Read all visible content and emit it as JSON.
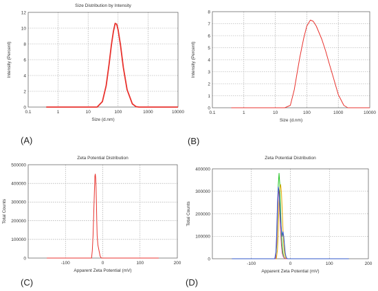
{
  "chart_data": [
    {
      "panel_label": "(A)",
      "type": "line",
      "title": "Size Distribution by Intensity",
      "xlabel": "Size (d.nm)",
      "ylabel": "Intensity (Percent)",
      "x_scale": "log",
      "xlim": [
        0.1,
        10000
      ],
      "ylim": [
        0,
        12
      ],
      "x_ticks": [
        0.1,
        1,
        10,
        100,
        1000,
        10000
      ],
      "x_tick_labels": [
        "0.1",
        "1",
        "10",
        "100",
        "1000",
        "10000"
      ],
      "y_ticks": [
        0,
        2,
        4,
        6,
        8,
        10,
        12
      ],
      "y_tick_labels": [
        "0",
        "2",
        "4",
        "6",
        "8",
        "10",
        "12"
      ],
      "grid": true,
      "series": [
        {
          "color": "#e8312c",
          "x": [
            0.4,
            5,
            20,
            30,
            40,
            50,
            60,
            70,
            80,
            90,
            100,
            120,
            150,
            200,
            300,
            400,
            500,
            10000
          ],
          "y": [
            0,
            0,
            0,
            0.7,
            2.7,
            5.4,
            7.9,
            9.6,
            10.6,
            10.5,
            9.8,
            7.9,
            5.0,
            2.2,
            0.4,
            0.05,
            0,
            0
          ]
        }
      ]
    },
    {
      "panel_label": "(B)",
      "type": "line",
      "title": "",
      "xlabel": "Size (d.nm)",
      "ylabel": "Intensity (Percent)",
      "x_scale": "log",
      "xlim": [
        0.1,
        10000
      ],
      "ylim": [
        0,
        8
      ],
      "x_ticks": [
        0.1,
        1,
        10,
        100,
        1000,
        10000
      ],
      "x_tick_labels": [
        "0.1",
        "1",
        "10",
        "100",
        "1000",
        "10000"
      ],
      "y_ticks": [
        0,
        1,
        2,
        3,
        4,
        5,
        6,
        7,
        8
      ],
      "y_tick_labels": [
        "0",
        "1",
        "2",
        "3",
        "4",
        "5",
        "6",
        "7",
        "8"
      ],
      "grid": true,
      "series": [
        {
          "color": "#e8312c",
          "x": [
            0.4,
            20,
            30,
            40,
            50,
            60,
            80,
            100,
            130,
            160,
            200,
            300,
            400,
            500,
            700,
            1000,
            1500,
            2000,
            3000,
            10000
          ],
          "y": [
            0,
            0,
            0.2,
            1.5,
            3.0,
            4.2,
            5.8,
            6.8,
            7.3,
            7.2,
            6.8,
            5.7,
            4.7,
            3.8,
            2.5,
            1.1,
            0.2,
            0,
            0,
            0
          ]
        }
      ]
    },
    {
      "panel_label": "(C)",
      "type": "line",
      "title": "Zeta Potential Distribution",
      "xlabel": "Apparent Zeta Potential (mV)",
      "ylabel": "Total Counts",
      "x_scale": "linear",
      "xlim": [
        -200,
        200
      ],
      "ylim": [
        0,
        500000
      ],
      "x_ticks": [
        -100,
        0,
        100,
        200
      ],
      "x_tick_labels": [
        "-100",
        "0",
        "100",
        "200"
      ],
      "y_ticks": [
        0,
        100000,
        200000,
        300000,
        400000,
        500000
      ],
      "y_tick_labels": [
        "0",
        "100000",
        "200000",
        "300000",
        "400000",
        "500000"
      ],
      "grid": true,
      "series": [
        {
          "color": "#e8312c",
          "x": [
            -150,
            -30,
            -28,
            -26,
            -24,
            -22,
            -21,
            -20,
            -19,
            -18,
            -17,
            -16,
            -15,
            -13,
            -11,
            -9,
            -7,
            -5,
            -3,
            150
          ],
          "y": [
            0,
            0,
            40000,
            120000,
            250000,
            380000,
            440000,
            450000,
            430000,
            380000,
            300000,
            200000,
            120000,
            70000,
            50000,
            30000,
            10000,
            3000,
            0,
            0
          ]
        }
      ]
    },
    {
      "panel_label": "(D)",
      "type": "line",
      "title": "Zeta Potential Distribution",
      "xlabel": "Apparent Zeta Potential (mV)",
      "ylabel": "Total Counts",
      "x_scale": "linear",
      "xlim": [
        -200,
        200
      ],
      "ylim": [
        0,
        400000
      ],
      "x_ticks": [
        -100,
        0,
        100,
        200
      ],
      "x_tick_labels": [
        "-100",
        "0",
        "100",
        "200"
      ],
      "y_ticks": [
        0,
        100000,
        200000,
        300000,
        400000
      ],
      "y_tick_labels": [
        "0",
        "100000",
        "200000",
        "300000",
        "400000"
      ],
      "grid": true,
      "series": [
        {
          "color": "#22c322",
          "x": [
            -150,
            -38,
            -35,
            -33,
            -31,
            -29,
            -27,
            -25,
            -23,
            -21,
            -19,
            -17,
            -15,
            -12,
            -9,
            150
          ],
          "y": [
            0,
            0,
            60000,
            180000,
            330000,
            380000,
            330000,
            210000,
            120000,
            60000,
            25000,
            8000,
            2000,
            0,
            0,
            0
          ]
        },
        {
          "color": "#e0a800",
          "x": [
            -150,
            -36,
            -33,
            -31,
            -29,
            -27,
            -25,
            -23,
            -21,
            -19,
            -17,
            -15,
            -13,
            -10,
            -7,
            150
          ],
          "y": [
            0,
            0,
            40000,
            130000,
            250000,
            310000,
            330000,
            300000,
            220000,
            130000,
            60000,
            20000,
            5000,
            0,
            0,
            0
          ]
        },
        {
          "color": "#c64a8c",
          "x": [
            -150,
            -38,
            -35,
            -33,
            -31,
            -29,
            -27,
            -25,
            -23,
            -21,
            -18,
            -15,
            -12,
            -9,
            150
          ],
          "y": [
            0,
            0,
            70000,
            200000,
            300000,
            290000,
            200000,
            120000,
            60000,
            25000,
            8000,
            2000,
            0,
            0,
            0
          ]
        },
        {
          "color": "#2f56c8",
          "x": [
            -150,
            -40,
            -37,
            -35,
            -33,
            -31,
            -29,
            -27,
            -25,
            -23,
            -21,
            -19,
            -17,
            -15,
            -13,
            -11,
            -9,
            -7,
            150
          ],
          "y": [
            0,
            0,
            30000,
            120000,
            250000,
            320000,
            300000,
            230000,
            170000,
            130000,
            100000,
            120000,
            100000,
            60000,
            25000,
            8000,
            2000,
            0,
            0
          ]
        }
      ]
    }
  ],
  "panel_letters": [
    "(A)",
    "(B)",
    "(C)",
    "(D)"
  ]
}
